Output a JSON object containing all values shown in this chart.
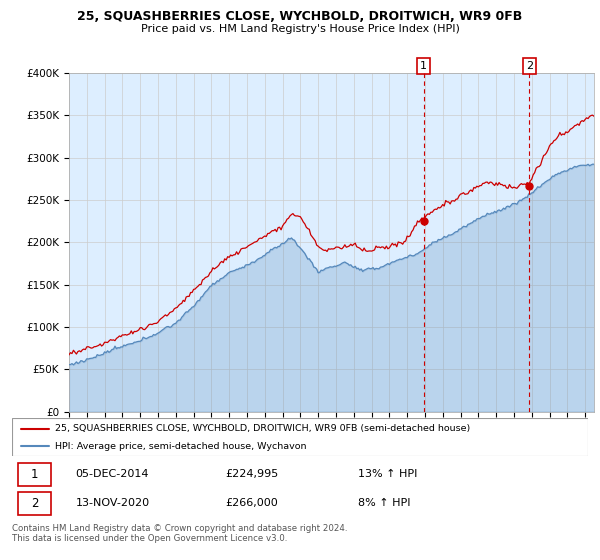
{
  "title": "25, SQUASHBERRIES CLOSE, WYCHBOLD, DROITWICH, WR9 0FB",
  "subtitle": "Price paid vs. HM Land Registry's House Price Index (HPI)",
  "legend_line1": "25, SQUASHBERRIES CLOSE, WYCHBOLD, DROITWICH, WR9 0FB (semi-detached house)",
  "legend_line2": "HPI: Average price, semi-detached house, Wychavon",
  "transaction1_date": "05-DEC-2014",
  "transaction1_price": "£224,995",
  "transaction1_hpi": "13% ↑ HPI",
  "transaction2_date": "13-NOV-2020",
  "transaction2_price": "£266,000",
  "transaction2_hpi": "8% ↑ HPI",
  "footer": "Contains HM Land Registry data © Crown copyright and database right 2024.\nThis data is licensed under the Open Government Licence v3.0.",
  "red_color": "#cc0000",
  "blue_color": "#5588bb",
  "vline_color": "#cc0000",
  "grid_color": "#cccccc",
  "plot_bg": "#ddeeff",
  "fig_bg": "#ffffff",
  "ylim_min": 0,
  "ylim_max": 400000,
  "year_start": 1995,
  "year_end": 2024,
  "vline1_year": 2014.92,
  "vline2_year": 2020.87,
  "t1_price": 224995,
  "t2_price": 266000
}
